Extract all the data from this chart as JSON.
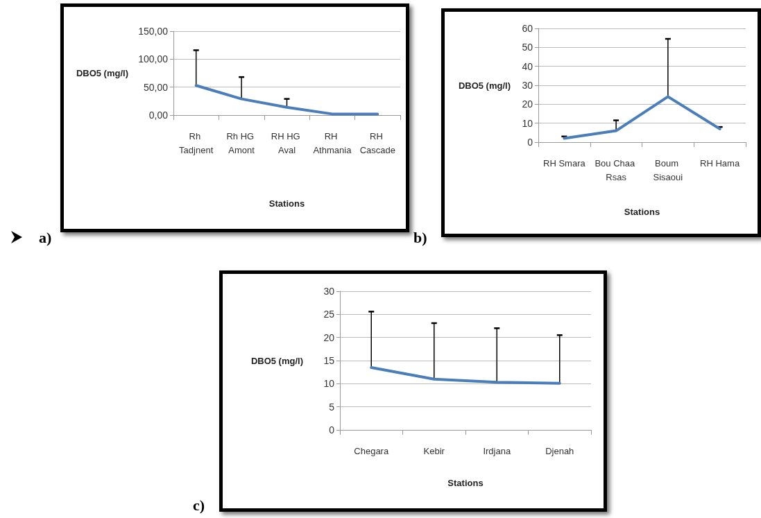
{
  "chart_data": [
    {
      "type": "line",
      "xlabel": "Stations",
      "ylabel": "DBO5 (mg/l)",
      "annotations": [
        "a)"
      ],
      "categories": [
        "Rh Tadjnent",
        "Rh HG Amont",
        "RH HG Aval",
        "RH Athmania",
        "RH Cascade"
      ],
      "series": [
        {
          "color": "#4a7ebb",
          "values": [
            53,
            29,
            14,
            2,
            2
          ],
          "errors": [
            [
              53,
              116
            ],
            [
              29,
              68
            ],
            [
              14,
              29
            ],
            null,
            null
          ]
        }
      ],
      "ylim": [
        0,
        150
      ],
      "yticks": [
        {
          "value": 0,
          "label": "0,00"
        },
        {
          "value": 50,
          "label": "50,00"
        },
        {
          "value": 100,
          "label": "100,00"
        },
        {
          "value": 150,
          "label": "150,00"
        }
      ],
      "grid": "y",
      "marker": "none",
      "line_style": "solid"
    },
    {
      "type": "line",
      "xlabel": "Stations",
      "ylabel": "DBO5 (mg/l)",
      "annotations": [
        "b)"
      ],
      "categories": [
        "RH Smara",
        "Bou Chaa Rsas",
        "Boum Sisaoui",
        "RH Hama"
      ],
      "series": [
        {
          "color": "#4a7ebb",
          "values": [
            2,
            6,
            24,
            7
          ],
          "errors": [
            [
              2,
              3
            ],
            [
              6,
              11.5
            ],
            [
              24,
              54.5
            ],
            [
              7,
              8
            ]
          ]
        }
      ],
      "ylim": [
        0,
        60
      ],
      "yticks": [
        0,
        10,
        20,
        30,
        40,
        50,
        60
      ],
      "grid": "y",
      "marker": "none",
      "line_style": "solid"
    },
    {
      "type": "line",
      "xlabel": "Stations",
      "ylabel": "DBO5 (mg/l)",
      "annotations": [
        "c)"
      ],
      "categories": [
        "Chegara",
        "Kebir",
        "Irdjana",
        "Djenah"
      ],
      "series": [
        {
          "color": "#4a7ebb",
          "values": [
            13.5,
            11,
            10.3,
            10.1
          ],
          "errors": [
            [
              13.5,
              25.6
            ],
            [
              11,
              23.1
            ],
            [
              10.3,
              22
            ],
            [
              10.1,
              20.5
            ]
          ]
        }
      ],
      "ylim": [
        0,
        30
      ],
      "yticks": [
        0,
        5,
        10,
        15,
        20,
        25,
        30
      ],
      "grid": "y",
      "marker": "none",
      "line_style": "solid"
    }
  ]
}
